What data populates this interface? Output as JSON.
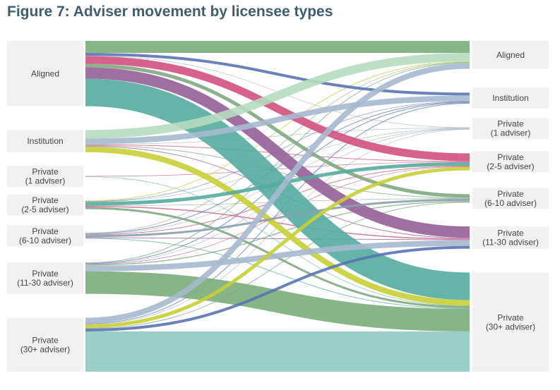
{
  "chart_data": {
    "type": "sankey",
    "title": "Figure 7: Adviser movement by licensee types",
    "nodes": [
      "Aligned",
      "Institution",
      "Private\n(1 adviser)",
      "Private\n(2-5 adviser)",
      "Private\n(6-10 adviser)",
      "Private\n(11-30 adviser)",
      "Private\n(30+ adviser)"
    ],
    "target_colors": [
      "#7aad7a",
      "#5b73b3",
      "#9fb0b8",
      "#d0507f",
      "#7fa880",
      "#955f98",
      "#55aba1"
    ],
    "flows": [
      [
        0,
        0,
        17
      ],
      [
        0,
        1,
        4
      ],
      [
        0,
        2,
        0.5
      ],
      [
        0,
        3,
        11
      ],
      [
        0,
        4,
        5
      ],
      [
        0,
        5,
        16
      ],
      [
        0,
        6,
        39
      ],
      [
        1,
        0,
        12,
        "#b5dcc0"
      ],
      [
        1,
        1,
        8,
        "#a7b9cf"
      ],
      [
        1,
        2,
        0.5
      ],
      [
        1,
        3,
        1
      ],
      [
        1,
        4,
        1
      ],
      [
        1,
        5,
        1
      ],
      [
        1,
        6,
        8,
        "#c8cf35"
      ],
      [
        2,
        3,
        0.5
      ],
      [
        2,
        6,
        0.5
      ],
      [
        3,
        0,
        1,
        "#c8cf35"
      ],
      [
        3,
        1,
        0.5
      ],
      [
        3,
        2,
        0.5
      ],
      [
        3,
        3,
        5,
        "#55aba1"
      ],
      [
        3,
        4,
        0.5
      ],
      [
        3,
        5,
        1.5,
        "#d0507f"
      ],
      [
        3,
        6,
        3,
        "#7fa880"
      ],
      [
        4,
        0,
        0.5
      ],
      [
        4,
        1,
        1
      ],
      [
        4,
        2,
        0.5
      ],
      [
        4,
        3,
        1,
        "#d0507f"
      ],
      [
        4,
        4,
        3,
        "#8a9fb0"
      ],
      [
        4,
        5,
        1
      ],
      [
        4,
        6,
        1
      ],
      [
        5,
        0,
        1,
        "#7fa880"
      ],
      [
        5,
        1,
        1
      ],
      [
        5,
        2,
        0.5
      ],
      [
        5,
        3,
        0.5
      ],
      [
        5,
        4,
        1.5
      ],
      [
        5,
        5,
        8,
        "#a7b9cf"
      ],
      [
        5,
        6,
        32,
        "#7aad7a"
      ],
      [
        6,
        0,
        8,
        "#a7b9cf"
      ],
      [
        6,
        1,
        1
      ],
      [
        6,
        2,
        0.5
      ],
      [
        6,
        3,
        5,
        "#c8cf35"
      ],
      [
        6,
        4,
        1
      ],
      [
        6,
        5,
        4,
        "#5b73b3"
      ],
      [
        6,
        6,
        57,
        "#8fc9c3"
      ]
    ]
  }
}
